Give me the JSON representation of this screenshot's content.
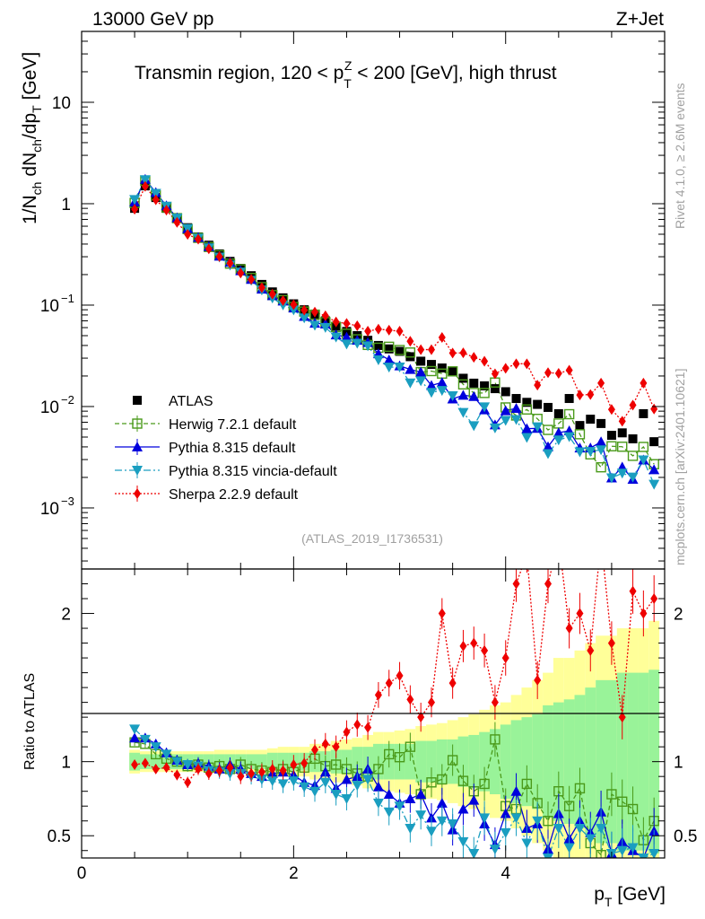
{
  "header": {
    "energy_label": "13000 GeV pp",
    "process_label": "Z+Jet",
    "region_title_main": "Transmin region, 120 < p",
    "region_title_sub": "T",
    "region_title_sup": "Z",
    "region_title_tail": " < 200 [GeV], high thrust",
    "rivet_label": "Rivet 4.1.0, ≥ 2.6M events",
    "source_label": "mcplots.cern.ch [arXiv:2401.10621]",
    "analysis_label": "(ATLAS_2019_I1736531)"
  },
  "axes": {
    "y_main_prefix": "1/N",
    "y_main_ch1": "ch",
    "y_main_mid": " dN",
    "y_main_ch2": "ch",
    "y_main_mid2": "/dp",
    "y_main_t": "T",
    "y_main_unit": " [GeV]",
    "y_ratio_label": "Ratio to ATLAS",
    "x_label_p": "p",
    "x_label_t": "T",
    "x_label_unit": " [GeV]",
    "main_ticks": [
      {
        "value": 10,
        "label": "10"
      },
      {
        "value": 1,
        "label": "1"
      },
      {
        "value": 0.1,
        "label": "10",
        "exp": "−1"
      },
      {
        "value": 0.01,
        "label": "10",
        "exp": "−2"
      },
      {
        "value": 0.001,
        "label": "10",
        "exp": "−3"
      }
    ],
    "ratio_ticks": [
      {
        "value": 2,
        "label": "2"
      },
      {
        "value": 1,
        "label": "1"
      },
      {
        "value": 0.5,
        "label": "0.5"
      }
    ],
    "x_ticks": [
      {
        "value": 0,
        "label": "0"
      },
      {
        "value": 2,
        "label": "2"
      },
      {
        "value": 4,
        "label": "4"
      }
    ]
  },
  "legend": [
    {
      "key": "atlas",
      "label": "ATLAS",
      "color": "#000000"
    },
    {
      "key": "herwig",
      "label": "Herwig 7.2.1 default",
      "color": "#4a9a1a"
    },
    {
      "key": "pythia",
      "label": "Pythia 8.315 default",
      "color": "#0000dd"
    },
    {
      "key": "vincia",
      "label": "Pythia 8.315 vincia-default",
      "color": "#1a9ec0"
    },
    {
      "key": "sherpa",
      "label": "Sherpa 2.2.9 default",
      "color": "#ee0000"
    }
  ],
  "chart_data": {
    "type": "scatter",
    "title": "Transmin region, 120 < pT^Z < 200 [GeV], high thrust",
    "xlabel": "pT [GeV]",
    "ylabel": "1/Nch dNch/dpT [GeV]",
    "ratio_ylabel": "Ratio to ATLAS",
    "xlim": [
      0,
      5.5
    ],
    "ylim": [
      0.00025,
      50
    ],
    "ratio_ylim": [
      0.35,
      2.3
    ],
    "x": [
      0.5,
      0.6,
      0.7,
      0.8,
      0.9,
      1.0,
      1.1,
      1.2,
      1.3,
      1.4,
      1.5,
      1.6,
      1.7,
      1.8,
      1.9,
      2.0,
      2.1,
      2.2,
      2.3,
      2.4,
      2.5,
      2.6,
      2.7,
      2.8,
      2.9,
      3.0,
      3.1,
      3.2,
      3.3,
      3.4,
      3.5,
      3.6,
      3.7,
      3.8,
      3.9,
      4.0,
      4.1,
      4.2,
      4.3,
      4.4,
      4.5,
      4.6,
      4.7,
      4.8,
      4.9,
      5.0,
      5.1,
      5.2,
      5.3,
      5.4
    ],
    "atlas_values": [
      0.9,
      1.5,
      1.15,
      0.9,
      0.72,
      0.58,
      0.47,
      0.39,
      0.32,
      0.27,
      0.23,
      0.195,
      0.16,
      0.135,
      0.118,
      0.103,
      0.09,
      0.079,
      0.07,
      0.062,
      0.055,
      0.05,
      0.045,
      0.04,
      0.037,
      0.035,
      0.031,
      0.028,
      0.026,
      0.024,
      0.022,
      0.019,
      0.017,
      0.016,
      0.015,
      0.014,
      0.012,
      0.011,
      0.0105,
      0.0098,
      0.0085,
      0.012,
      0.0065,
      0.0075,
      0.0068,
      0.0052,
      0.0055,
      0.0048,
      0.0085,
      0.0045
    ],
    "band_inner": [
      0.06,
      0.05,
      0.05,
      0.05,
      0.05,
      0.05,
      0.05,
      0.05,
      0.05,
      0.05,
      0.05,
      0.05,
      0.05,
      0.06,
      0.06,
      0.06,
      0.06,
      0.07,
      0.07,
      0.08,
      0.08,
      0.1,
      0.1,
      0.12,
      0.12,
      0.12,
      0.12,
      0.14,
      0.14,
      0.15,
      0.15,
      0.17,
      0.18,
      0.2,
      0.22,
      0.25,
      0.28,
      0.3,
      0.32,
      0.38,
      0.4,
      0.42,
      0.45,
      0.5,
      0.55,
      0.55,
      0.6,
      0.6,
      0.6,
      0.62
    ],
    "band_outer": [
      0.08,
      0.07,
      0.07,
      0.07,
      0.07,
      0.07,
      0.07,
      0.07,
      0.08,
      0.08,
      0.08,
      0.08,
      0.08,
      0.09,
      0.1,
      0.1,
      0.1,
      0.12,
      0.12,
      0.14,
      0.15,
      0.16,
      0.18,
      0.2,
      0.2,
      0.21,
      0.22,
      0.24,
      0.25,
      0.26,
      0.28,
      0.3,
      0.32,
      0.35,
      0.38,
      0.4,
      0.45,
      0.5,
      0.55,
      0.6,
      0.7,
      0.7,
      0.75,
      0.8,
      0.85,
      0.85,
      0.9,
      0.9,
      0.9,
      0.95
    ],
    "series": [
      {
        "name": "Herwig 7.2.1 default",
        "ratio": [
          1.13,
          1.12,
          1.05,
          1.02,
          1.0,
          0.97,
          0.98,
          0.96,
          0.97,
          0.95,
          0.98,
          0.95,
          0.94,
          0.93,
          0.95,
          0.93,
          0.96,
          1.02,
          0.97,
          0.98,
          0.95,
          0.92,
          0.9,
          0.95,
          1.05,
          1.03,
          1.1,
          0.78,
          0.86,
          0.88,
          1.01,
          0.87,
          0.8,
          0.85,
          1.15,
          0.7,
          0.68,
          0.85,
          0.72,
          0.6,
          0.8,
          0.7,
          0.82,
          0.45,
          0.37,
          0.78,
          0.73,
          0.68,
          0.47,
          0.6
        ]
      },
      {
        "name": "Pythia 8.315 default",
        "ratio": [
          1.16,
          1.16,
          1.12,
          1.06,
          1.01,
          0.98,
          0.99,
          0.97,
          0.95,
          0.98,
          0.95,
          0.92,
          0.9,
          0.92,
          0.93,
          0.91,
          0.86,
          0.84,
          0.93,
          0.82,
          0.88,
          0.9,
          0.95,
          0.83,
          0.78,
          0.72,
          0.75,
          0.78,
          0.62,
          0.72,
          0.54,
          0.68,
          0.74,
          0.58,
          0.44,
          0.65,
          0.8,
          0.55,
          0.58,
          0.41,
          0.65,
          0.48,
          0.6,
          0.52,
          0.66,
          0.38,
          0.46,
          0.4,
          0.35,
          0.53
        ]
      },
      {
        "name": "Pythia 8.315 vincia-default",
        "ratio": [
          1.22,
          1.15,
          1.1,
          1.05,
          1.0,
          0.98,
          0.97,
          0.94,
          0.93,
          0.92,
          0.92,
          0.9,
          0.88,
          0.87,
          0.85,
          0.87,
          0.83,
          0.8,
          0.86,
          0.78,
          0.75,
          0.84,
          0.88,
          0.72,
          0.66,
          0.7,
          0.55,
          0.64,
          0.53,
          0.6,
          0.58,
          0.46,
          0.38,
          0.62,
          0.41,
          0.52,
          0.62,
          0.45,
          0.6,
          0.35,
          0.55,
          0.42,
          0.55,
          0.48,
          0.55,
          0.38,
          0.4,
          0.42,
          0.35,
          0.38
        ]
      },
      {
        "name": "Sherpa 2.2.9 default",
        "ratio": [
          0.98,
          0.99,
          0.95,
          0.96,
          0.91,
          0.86,
          0.95,
          0.92,
          0.94,
          0.96,
          0.9,
          0.92,
          0.93,
          0.95,
          0.94,
          0.98,
          0.99,
          1.08,
          1.12,
          1.1,
          1.2,
          1.25,
          1.23,
          1.45,
          1.53,
          1.58,
          1.42,
          1.3,
          1.4,
          2.0,
          1.53,
          1.78,
          1.8,
          1.75,
          1.4,
          1.7,
          2.2,
          2.4,
          1.55,
          2.2,
          2.5,
          1.9,
          2.0,
          1.75,
          2.5,
          1.8,
          1.3,
          2.15,
          2.0,
          2.1
        ]
      }
    ]
  }
}
